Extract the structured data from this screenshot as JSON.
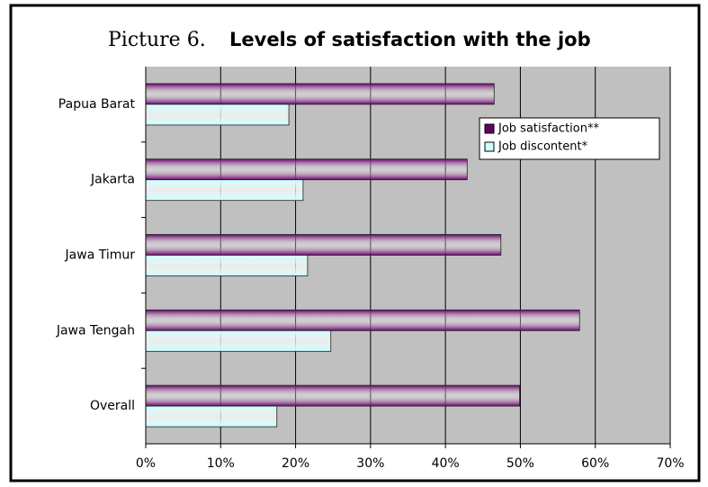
{
  "chart_data": {
    "type": "hbar",
    "figure_label": "Picture 6.",
    "title": "Levels of satisfaction with the job",
    "categories": [
      "Papua Barat",
      "Jakarta",
      "Jawa Timur",
      "Jawa Tengah",
      "Overall"
    ],
    "series": [
      {
        "name": "Job satisfaction**",
        "color": "#660066",
        "values": [
          46.5,
          42.9,
          47.4,
          57.9,
          49.9
        ]
      },
      {
        "name": "Job discontent*",
        "color": "#ccffff",
        "values": [
          19.1,
          21.0,
          21.6,
          24.7,
          17.5
        ]
      }
    ],
    "xlim": [
      0,
      70
    ],
    "xticks": [
      {
        "value": 0,
        "label": "0%"
      },
      {
        "value": 10,
        "label": "10%"
      },
      {
        "value": 20,
        "label": "20%"
      },
      {
        "value": 30,
        "label": "30%"
      },
      {
        "value": 40,
        "label": "40%"
      },
      {
        "value": 50,
        "label": "50%"
      },
      {
        "value": 60,
        "label": "60%"
      },
      {
        "value": 70,
        "label": "70%"
      }
    ],
    "grid": true,
    "legend": "upper right",
    "plot_background": "#c0c0c0"
  }
}
